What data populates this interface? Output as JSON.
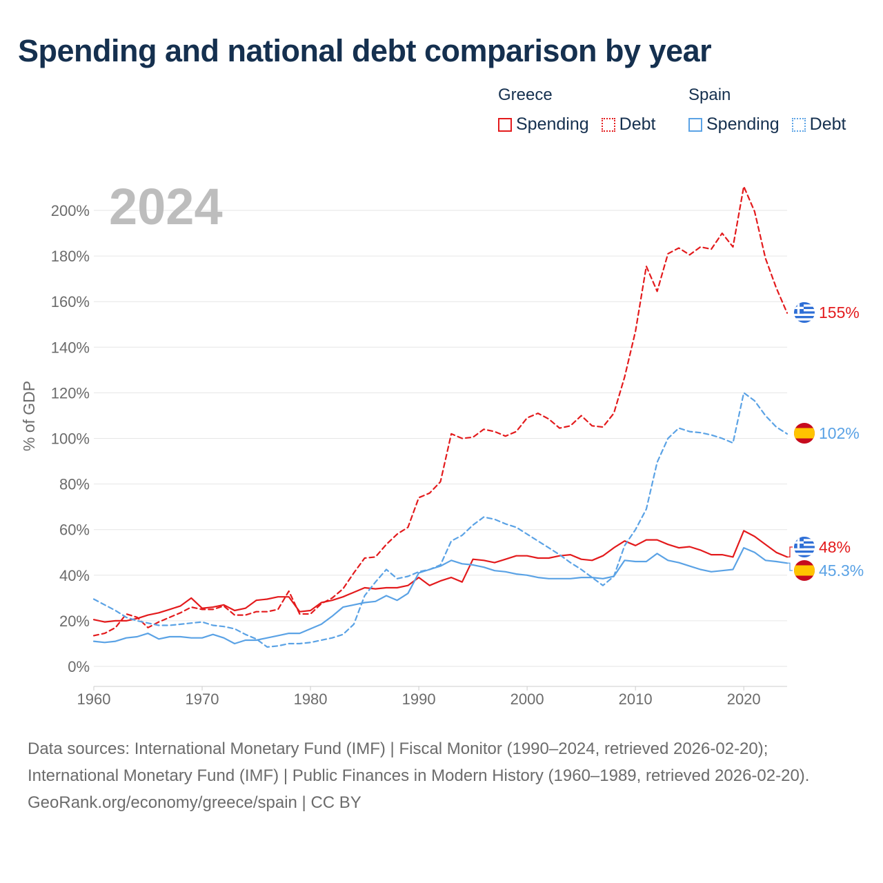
{
  "title": "Spending and national debt comparison by year",
  "legend": {
    "groups": [
      {
        "country": "Greece",
        "items": [
          {
            "label": "Spending",
            "color": "#e31a1c",
            "style": "solid"
          },
          {
            "label": "Debt",
            "color": "#e31a1c",
            "style": "dotted"
          }
        ]
      },
      {
        "country": "Spain",
        "items": [
          {
            "label": "Spending",
            "color": "#5aa2e5",
            "style": "solid"
          },
          {
            "label": "Debt",
            "color": "#5aa2e5",
            "style": "dotted"
          }
        ]
      }
    ]
  },
  "chart_data": {
    "type": "line",
    "year_label": "2024",
    "ylabel": "% of GDP",
    "xlabel": "",
    "xlim": [
      1960,
      2024
    ],
    "ylim": [
      0,
      210
    ],
    "x_ticks": [
      1960,
      1970,
      1980,
      1990,
      2000,
      2010,
      2020
    ],
    "y_ticks": [
      0,
      20,
      40,
      60,
      80,
      100,
      120,
      140,
      160,
      180,
      200
    ],
    "y_tick_labels": [
      "0%",
      "20%",
      "40%",
      "60%",
      "80%",
      "100%",
      "120%",
      "140%",
      "160%",
      "180%",
      "200%"
    ],
    "grid": true,
    "x": [
      1960,
      1961,
      1962,
      1963,
      1964,
      1965,
      1966,
      1967,
      1968,
      1969,
      1970,
      1971,
      1972,
      1973,
      1974,
      1975,
      1976,
      1977,
      1978,
      1979,
      1980,
      1981,
      1982,
      1983,
      1984,
      1985,
      1986,
      1987,
      1988,
      1989,
      1990,
      1991,
      1992,
      1993,
      1994,
      1995,
      1996,
      1997,
      1998,
      1999,
      2000,
      2001,
      2002,
      2003,
      2004,
      2005,
      2006,
      2007,
      2008,
      2009,
      2010,
      2011,
      2012,
      2013,
      2014,
      2015,
      2016,
      2017,
      2018,
      2019,
      2020,
      2021,
      2022,
      2023,
      2024
    ],
    "series": [
      {
        "name": "Greece Debt",
        "country": "Greece",
        "measure": "Debt",
        "color": "#e31a1c",
        "dash": "dashed",
        "end_label": "155%",
        "flag": "greece",
        "values": [
          13.5,
          14.5,
          17,
          23,
          21.5,
          17,
          19.5,
          21.5,
          23.5,
          26,
          25,
          25,
          26.5,
          22.5,
          22.5,
          24,
          24,
          25,
          33,
          23,
          23,
          27.5,
          30,
          34,
          41,
          47.5,
          48,
          53.5,
          58,
          61,
          74,
          76,
          81,
          102,
          100,
          100.5,
          104,
          103,
          101,
          103,
          109,
          111,
          108.5,
          104.5,
          105.5,
          110,
          105.5,
          105,
          111,
          127,
          147,
          175.5,
          164.5,
          181,
          183.5,
          180.5,
          184,
          183,
          190,
          184,
          210.5,
          199.5,
          179,
          166,
          155
        ]
      },
      {
        "name": "Greece Spending",
        "country": "Greece",
        "measure": "Spending",
        "color": "#e31a1c",
        "dash": "solid",
        "end_label": "48%",
        "flag": "greece",
        "values": [
          20.5,
          19.5,
          20,
          20,
          21,
          22.5,
          23.5,
          25,
          26.5,
          30,
          25.5,
          26,
          27,
          24.5,
          25.5,
          29,
          29.5,
          30.5,
          30.5,
          24,
          24.5,
          28,
          29,
          30.5,
          32.5,
          34.5,
          34,
          34.5,
          34.5,
          35.5,
          39,
          35.5,
          37.5,
          39,
          37,
          47,
          46.5,
          45.5,
          47,
          48.5,
          48.5,
          47.5,
          47.5,
          48.5,
          49,
          47,
          46.5,
          48.5,
          52,
          55,
          53,
          55.5,
          55.5,
          53.5,
          52,
          52.5,
          51,
          49,
          49,
          48,
          59.5,
          57,
          53.5,
          50,
          48
        ]
      },
      {
        "name": "Spain Debt",
        "country": "Spain",
        "measure": "Debt",
        "color": "#5aa2e5",
        "dash": "dashed",
        "end_label": "102%",
        "flag": "spain",
        "values": [
          29.5,
          27,
          24.5,
          21.5,
          20,
          19,
          18,
          18,
          18.5,
          19,
          19.5,
          18,
          17.5,
          16.5,
          14,
          12,
          8.5,
          9,
          10,
          10,
          10.5,
          11.5,
          12.5,
          14,
          18.5,
          31,
          37,
          42.5,
          38.5,
          39.5,
          41.5,
          42.5,
          44.5,
          55,
          57.5,
          62,
          65.5,
          64.5,
          62.5,
          61,
          58,
          55,
          52,
          49,
          45.5,
          42.5,
          39,
          35.5,
          39.5,
          53,
          60,
          69,
          89.5,
          100,
          104.5,
          103,
          102.5,
          101.5,
          100,
          98,
          120,
          116.5,
          110,
          105,
          102
        ]
      },
      {
        "name": "Spain Spending",
        "country": "Spain",
        "measure": "Spending",
        "color": "#5aa2e5",
        "dash": "solid",
        "end_label": "45.3%",
        "flag": "spain",
        "values": [
          11,
          10.5,
          11,
          12.5,
          13,
          14.5,
          12,
          13,
          13,
          12.5,
          12.5,
          14,
          12.5,
          10,
          11.5,
          11.5,
          12.5,
          13.5,
          14.5,
          14.5,
          16.5,
          18.5,
          22,
          26,
          27,
          28,
          28.5,
          31,
          29,
          32,
          41,
          42.5,
          44,
          46.5,
          45,
          44.5,
          43.5,
          42,
          41.5,
          40.5,
          40,
          39,
          38.5,
          38.5,
          38.5,
          39,
          39,
          38.5,
          39.5,
          46.5,
          46,
          46,
          49.5,
          46.5,
          45.5,
          44,
          42.5,
          41.5,
          42,
          42.5,
          52,
          50,
          46.5,
          46,
          45.3
        ]
      }
    ]
  },
  "footer": {
    "source_line": "Data sources: International Monetary Fund (IMF) | Fiscal Monitor (1990–2024, retrieved 2026-02-20); International Monetary Fund (IMF) | Public Finances in Modern History (1960–1989, retrieved 2026-02-20).",
    "credit_line": "GeoRank.org/economy/greece/spain | CC BY"
  }
}
